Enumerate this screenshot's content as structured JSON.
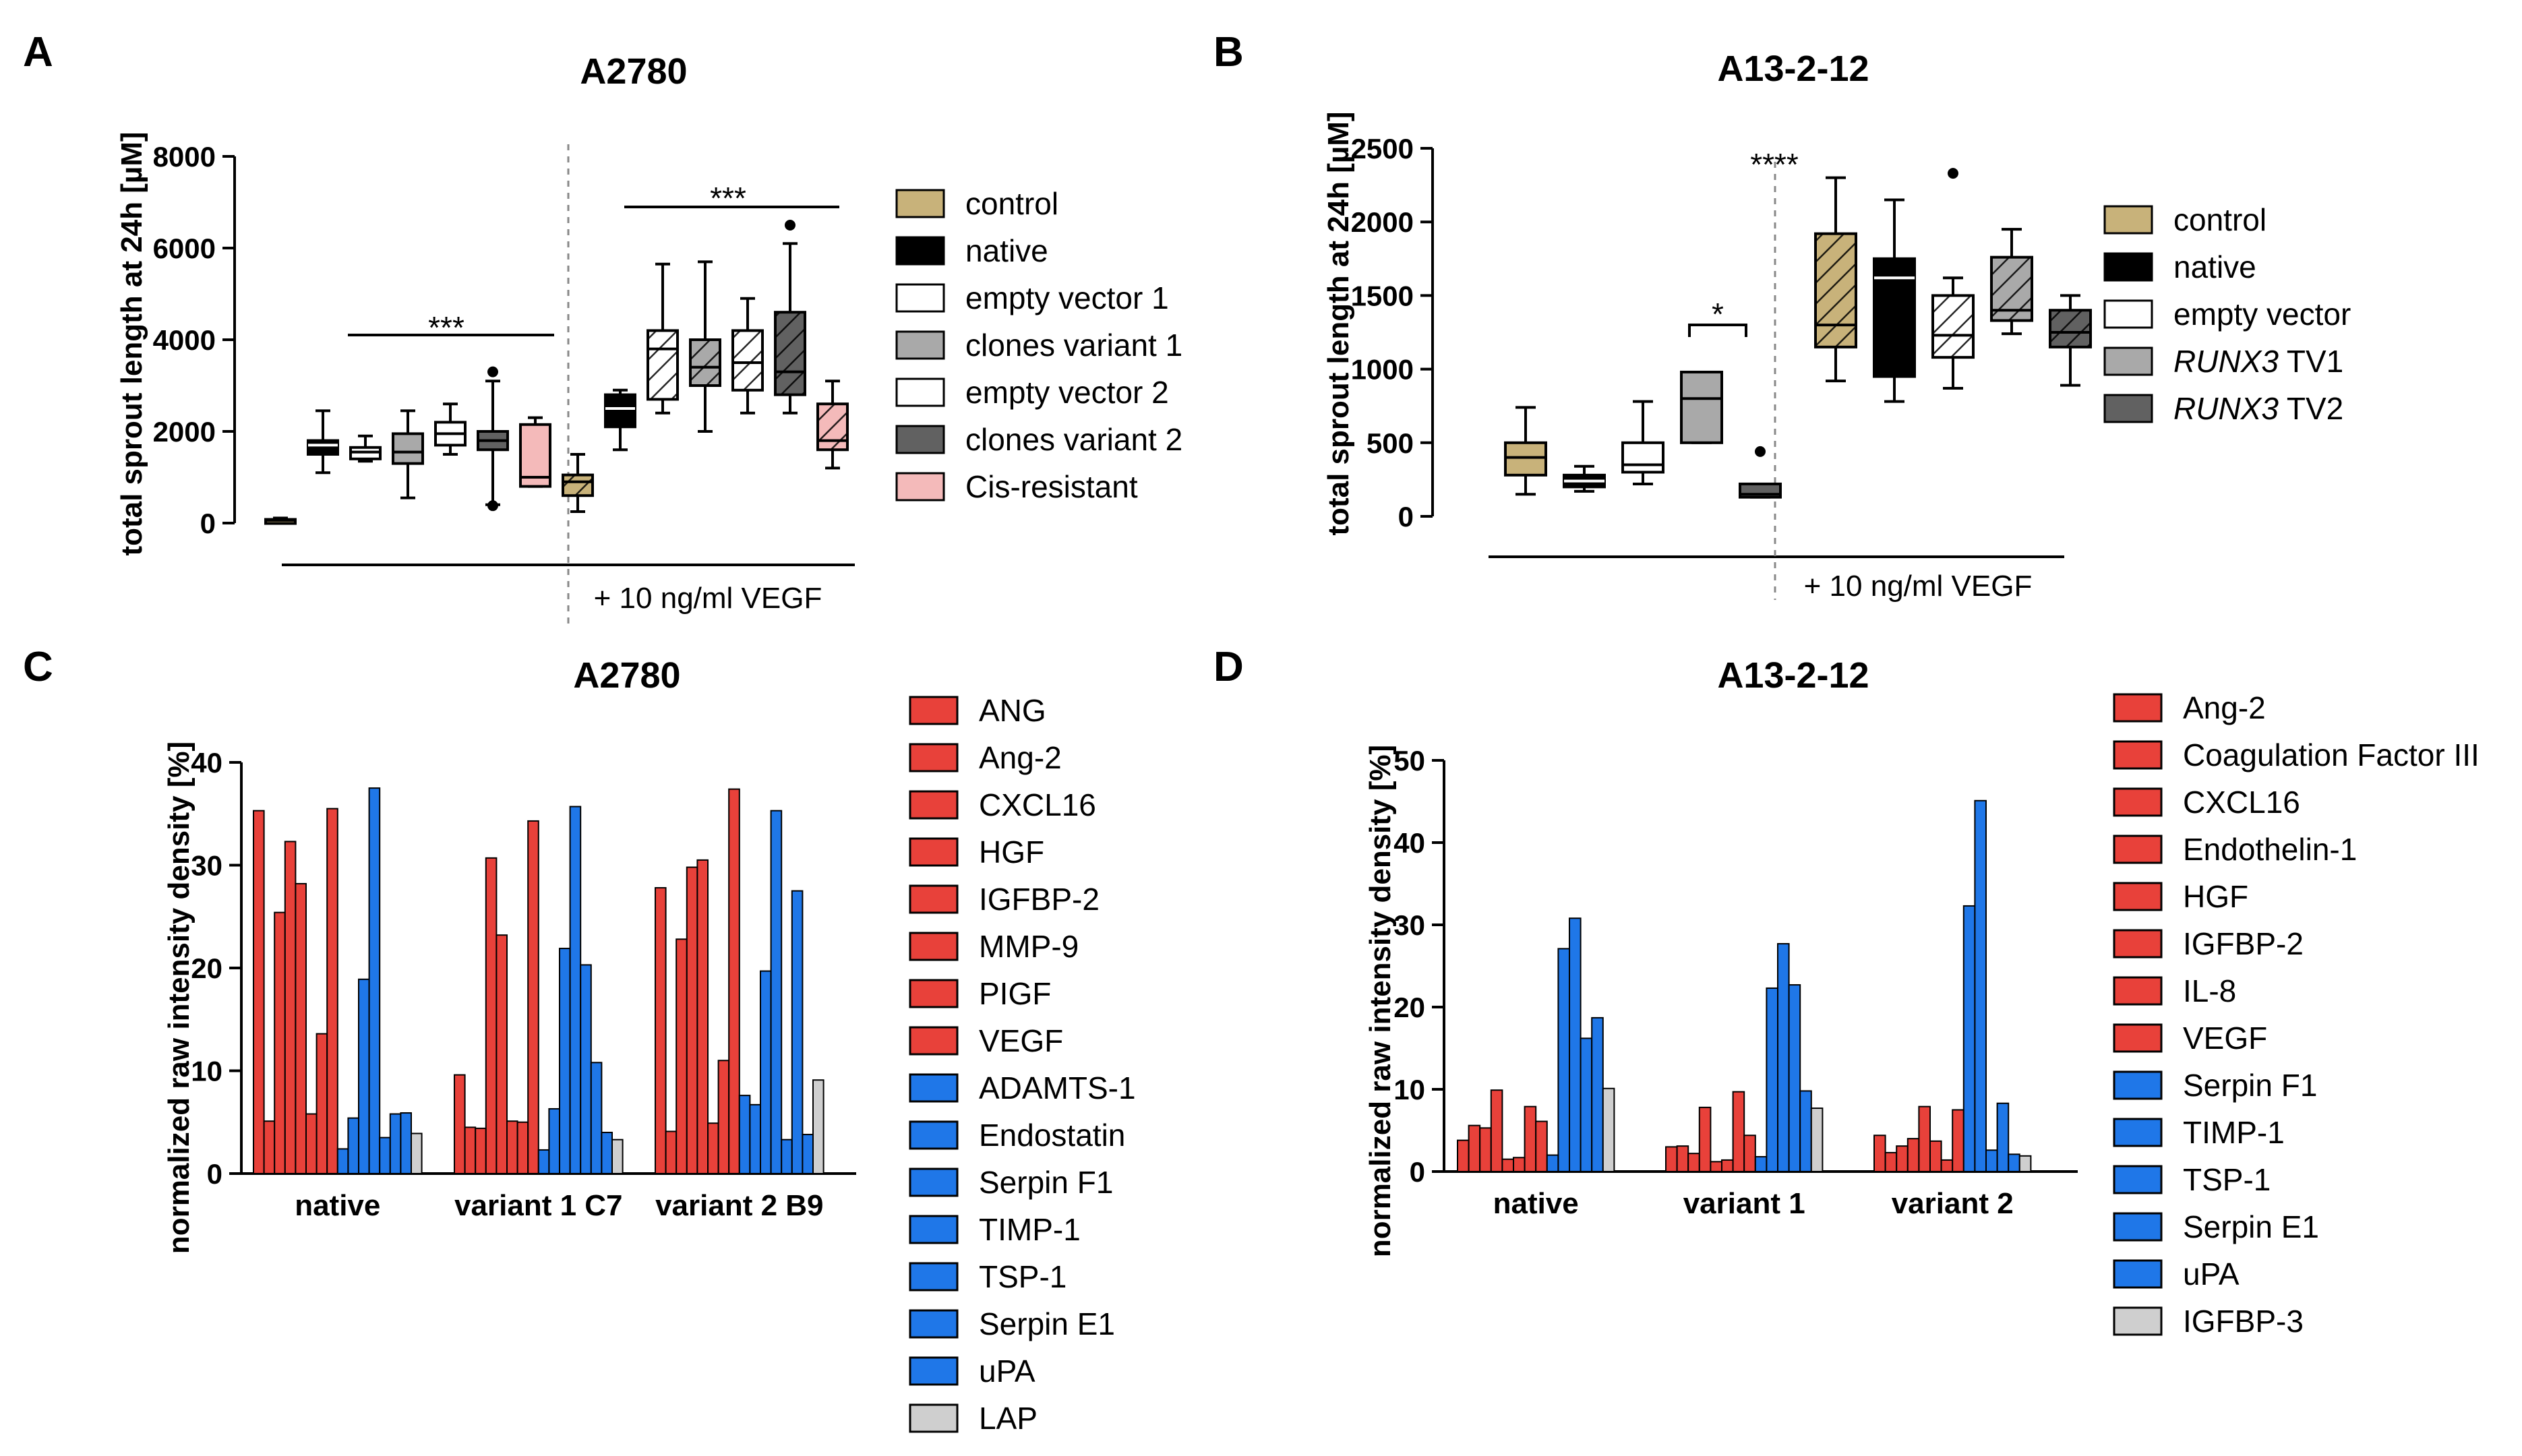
{
  "panels": [
    {
      "letter": "A"
    },
    {
      "letter": "B"
    },
    {
      "letter": "C"
    },
    {
      "letter": "D"
    }
  ],
  "colors": {
    "control": "#c8b27a",
    "native": "#000000",
    "empty": "#ffffff",
    "grey": "#a9a9a9",
    "dark": "#616161",
    "cis": "#f4baba",
    "red": "#e8413a",
    "blue": "#1f77e8",
    "lightgrey": "#cfcfcf"
  },
  "chart_data": [
    {
      "id": "A",
      "type": "box",
      "title": "A2780",
      "ylabel": "total sprout length at 24h [µM]",
      "ylim": [
        0,
        8000
      ],
      "yticks": [
        "0",
        "2000",
        "4000",
        "6000",
        "8000"
      ],
      "treatment_label": "+ 10 ng/ml VEGF",
      "significance": [
        "***",
        "***"
      ],
      "legend": [
        {
          "label": "control",
          "color": "#c8b27a"
        },
        {
          "label": "native",
          "color": "#000000"
        },
        {
          "label": "empty vector 1",
          "color": "#ffffff"
        },
        {
          "label": "clones variant 1",
          "color": "#a9a9a9"
        },
        {
          "label": "empty vector 2",
          "color": "#ffffff"
        },
        {
          "label": "clones variant 2",
          "color": "#616161"
        },
        {
          "label": "Cis-resistant",
          "color": "#f4baba"
        }
      ],
      "boxes": [
        {
          "group": "control",
          "vegf": false,
          "min": 20,
          "q1": 40,
          "median": 60,
          "q3": 80,
          "max": 110
        },
        {
          "group": "native",
          "vegf": false,
          "min": 1100,
          "q1": 1500,
          "median": 1700,
          "q3": 1800,
          "max": 2450
        },
        {
          "group": "empty vector 1",
          "vegf": false,
          "min": 1350,
          "q1": 1400,
          "median": 1550,
          "q3": 1650,
          "max": 1900
        },
        {
          "group": "clones variant 1",
          "vegf": false,
          "min": 550,
          "q1": 1300,
          "median": 1550,
          "q3": 1950,
          "max": 2450
        },
        {
          "group": "empty vector 2",
          "vegf": false,
          "min": 1500,
          "q1": 1700,
          "median": 1950,
          "q3": 2200,
          "max": 2600
        },
        {
          "group": "clones variant 2",
          "vegf": false,
          "min": 400,
          "q1": 1600,
          "median": 1800,
          "q3": 2000,
          "max": 3100,
          "outliers": [
            3300,
            380
          ]
        },
        {
          "group": "Cis-resistant",
          "vegf": false,
          "min": 800,
          "q1": 800,
          "median": 1000,
          "q3": 2150,
          "max": 2300
        },
        {
          "group": "control",
          "vegf": true,
          "min": 250,
          "q1": 600,
          "median": 900,
          "q3": 1050,
          "max": 1500
        },
        {
          "group": "native",
          "vegf": true,
          "min": 1600,
          "q1": 2100,
          "median": 2500,
          "q3": 2800,
          "max": 2900
        },
        {
          "group": "empty vector 1",
          "vegf": true,
          "min": 2400,
          "q1": 2700,
          "median": 3800,
          "q3": 4200,
          "max": 5650
        },
        {
          "group": "clones variant 1",
          "vegf": true,
          "min": 2000,
          "q1": 3000,
          "median": 3400,
          "q3": 4000,
          "max": 5700
        },
        {
          "group": "empty vector 2",
          "vegf": true,
          "min": 2400,
          "q1": 2900,
          "median": 3500,
          "q3": 4200,
          "max": 4900
        },
        {
          "group": "clones variant 2",
          "vegf": true,
          "min": 2400,
          "q1": 2800,
          "median": 3300,
          "q3": 4600,
          "max": 6100,
          "outliers": [
            6500
          ]
        },
        {
          "group": "Cis-resistant",
          "vegf": true,
          "min": 1200,
          "q1": 1600,
          "median": 1800,
          "q3": 2600,
          "max": 3100
        }
      ]
    },
    {
      "id": "B",
      "type": "box",
      "title": "A13-2-12",
      "ylabel": "total sprout length at 24h [µM]",
      "ylim": [
        0,
        2500
      ],
      "yticks": [
        "0",
        "500",
        "1000",
        "1500",
        "2000",
        "2500"
      ],
      "treatment_label": "+ 10 ng/ml VEGF",
      "significance": [
        "*",
        "****"
      ],
      "legend": [
        {
          "label": "control",
          "color": "#c8b27a"
        },
        {
          "label": "native",
          "color": "#000000"
        },
        {
          "label": "empty vector",
          "color": "#ffffff"
        },
        {
          "label": "RUNX3",
          "label_suffix": " TV1",
          "color": "#a9a9a9"
        },
        {
          "label": "RUNX3",
          "label_suffix": " TV2",
          "color": "#616161"
        }
      ],
      "boxes": [
        {
          "group": "control",
          "vegf": false,
          "min": 150,
          "q1": 280,
          "median": 400,
          "q3": 500,
          "max": 740
        },
        {
          "group": "native",
          "vegf": false,
          "min": 170,
          "q1": 200,
          "median": 240,
          "q3": 280,
          "max": 340
        },
        {
          "group": "empty vector",
          "vegf": false,
          "min": 220,
          "q1": 300,
          "median": 350,
          "q3": 500,
          "max": 780
        },
        {
          "group": "RUNX3 TV1",
          "vegf": false,
          "min": 500,
          "q1": 500,
          "median": 800,
          "q3": 980,
          "max": 980
        },
        {
          "group": "RUNX3 TV2",
          "vegf": false,
          "min": 130,
          "q1": 130,
          "median": 150,
          "q3": 220,
          "max": 220,
          "outliers": [
            440
          ]
        },
        {
          "group": "control",
          "vegf": true,
          "min": 920,
          "q1": 1150,
          "median": 1300,
          "q3": 1920,
          "max": 2300
        },
        {
          "group": "native",
          "vegf": true,
          "min": 780,
          "q1": 950,
          "median": 1620,
          "q3": 1750,
          "max": 2150
        },
        {
          "group": "empty vector",
          "vegf": true,
          "min": 870,
          "q1": 1080,
          "median": 1230,
          "q3": 1500,
          "max": 1620,
          "outliers": [
            2330
          ]
        },
        {
          "group": "RUNX3 TV1",
          "vegf": true,
          "min": 1240,
          "q1": 1330,
          "median": 1400,
          "q3": 1760,
          "max": 1950
        },
        {
          "group": "RUNX3 TV2",
          "vegf": true,
          "min": 890,
          "q1": 1150,
          "median": 1250,
          "q3": 1400,
          "max": 1500
        }
      ]
    },
    {
      "id": "C",
      "type": "bar",
      "title": "A2780",
      "ylabel": "normalized raw intensity density [%]",
      "ylim": [
        0,
        40
      ],
      "yticks": [
        "0",
        "10",
        "20",
        "30",
        "40"
      ],
      "categories": [
        "native",
        "variant 1 C7",
        "variant 2 B9"
      ],
      "series": [
        {
          "name": "ANG",
          "color": "#e8413a",
          "values": [
            35.3,
            9.6,
            27.8
          ]
        },
        {
          "name": "Ang-2",
          "color": "#e8413a",
          "values": [
            5.1,
            4.5,
            4.1
          ]
        },
        {
          "name": "CXCL16",
          "color": "#e8413a",
          "values": [
            25.4,
            4.4,
            22.8
          ]
        },
        {
          "name": "HGF",
          "color": "#e8413a",
          "values": [
            32.3,
            30.7,
            29.8
          ]
        },
        {
          "name": "IGFBP-2",
          "color": "#e8413a",
          "values": [
            28.2,
            23.2,
            30.5
          ]
        },
        {
          "name": "MMP-9",
          "color": "#e8413a",
          "values": [
            5.8,
            5.1,
            4.9
          ]
        },
        {
          "name": "PIGF",
          "color": "#e8413a",
          "values": [
            13.6,
            5.0,
            11.0
          ]
        },
        {
          "name": "VEGF",
          "color": "#e8413a",
          "values": [
            35.5,
            34.3,
            37.4
          ]
        },
        {
          "name": "ADAMTS-1",
          "color": "#1f77e8",
          "values": [
            2.4,
            2.3,
            7.6
          ]
        },
        {
          "name": "Endostatin",
          "color": "#1f77e8",
          "values": [
            5.4,
            6.3,
            6.7
          ]
        },
        {
          "name": "Serpin F1",
          "color": "#1f77e8",
          "values": [
            18.9,
            21.9,
            19.7
          ]
        },
        {
          "name": "TIMP-1",
          "color": "#1f77e8",
          "values": [
            37.5,
            35.7,
            35.3
          ]
        },
        {
          "name": "TSP-1",
          "color": "#1f77e8",
          "values": [
            3.5,
            20.3,
            3.3
          ]
        },
        {
          "name": "Serpin E1",
          "color": "#1f77e8",
          "values": [
            5.8,
            10.8,
            27.5
          ]
        },
        {
          "name": "uPA",
          "color": "#1f77e8",
          "values": [
            5.9,
            4.0,
            3.8
          ]
        },
        {
          "name": "LAP",
          "color": "#cfcfcf",
          "values": [
            3.9,
            3.3,
            9.1
          ]
        }
      ]
    },
    {
      "id": "D",
      "type": "bar",
      "title": "A13-2-12",
      "ylabel": "normalized raw intensity density [%]",
      "ylim": [
        0,
        50
      ],
      "yticks": [
        "0",
        "10",
        "20",
        "30",
        "40",
        "50"
      ],
      "categories": [
        "native",
        "variant 1",
        "variant 2"
      ],
      "series": [
        {
          "name": "Ang-2",
          "color": "#e8413a",
          "values": [
            3.8,
            3.0,
            4.4
          ]
        },
        {
          "name": "Coagulation Factor III",
          "color": "#e8413a",
          "values": [
            5.6,
            3.1,
            2.3
          ]
        },
        {
          "name": "CXCL16",
          "color": "#e8413a",
          "values": [
            5.3,
            2.2,
            3.1
          ]
        },
        {
          "name": "Endothelin-1",
          "color": "#e8413a",
          "values": [
            9.9,
            7.8,
            4.0
          ]
        },
        {
          "name": "HGF",
          "color": "#e8413a",
          "values": [
            1.5,
            1.2,
            7.9
          ]
        },
        {
          "name": "IGFBP-2",
          "color": "#e8413a",
          "values": [
            1.7,
            1.4,
            3.7
          ]
        },
        {
          "name": "IL-8",
          "color": "#e8413a",
          "values": [
            7.9,
            9.7,
            1.4
          ]
        },
        {
          "name": "VEGF",
          "color": "#e8413a",
          "values": [
            6.1,
            4.4,
            7.5
          ]
        },
        {
          "name": "Serpin F1",
          "color": "#1f77e8",
          "values": [
            2.0,
            1.8,
            32.3
          ]
        },
        {
          "name": "TIMP-1",
          "color": "#1f77e8",
          "values": [
            27.1,
            22.3,
            45.1
          ]
        },
        {
          "name": "TSP-1",
          "color": "#1f77e8",
          "values": [
            30.8,
            27.7,
            2.6
          ]
        },
        {
          "name": "Serpin E1",
          "color": "#1f77e8",
          "values": [
            16.2,
            22.7,
            8.3
          ]
        },
        {
          "name": "uPA",
          "color": "#1f77e8",
          "values": [
            18.7,
            9.8,
            2.1
          ]
        },
        {
          "name": "IGFBP-3",
          "color": "#cfcfcf",
          "values": [
            10.1,
            7.7,
            1.9
          ]
        }
      ]
    }
  ]
}
